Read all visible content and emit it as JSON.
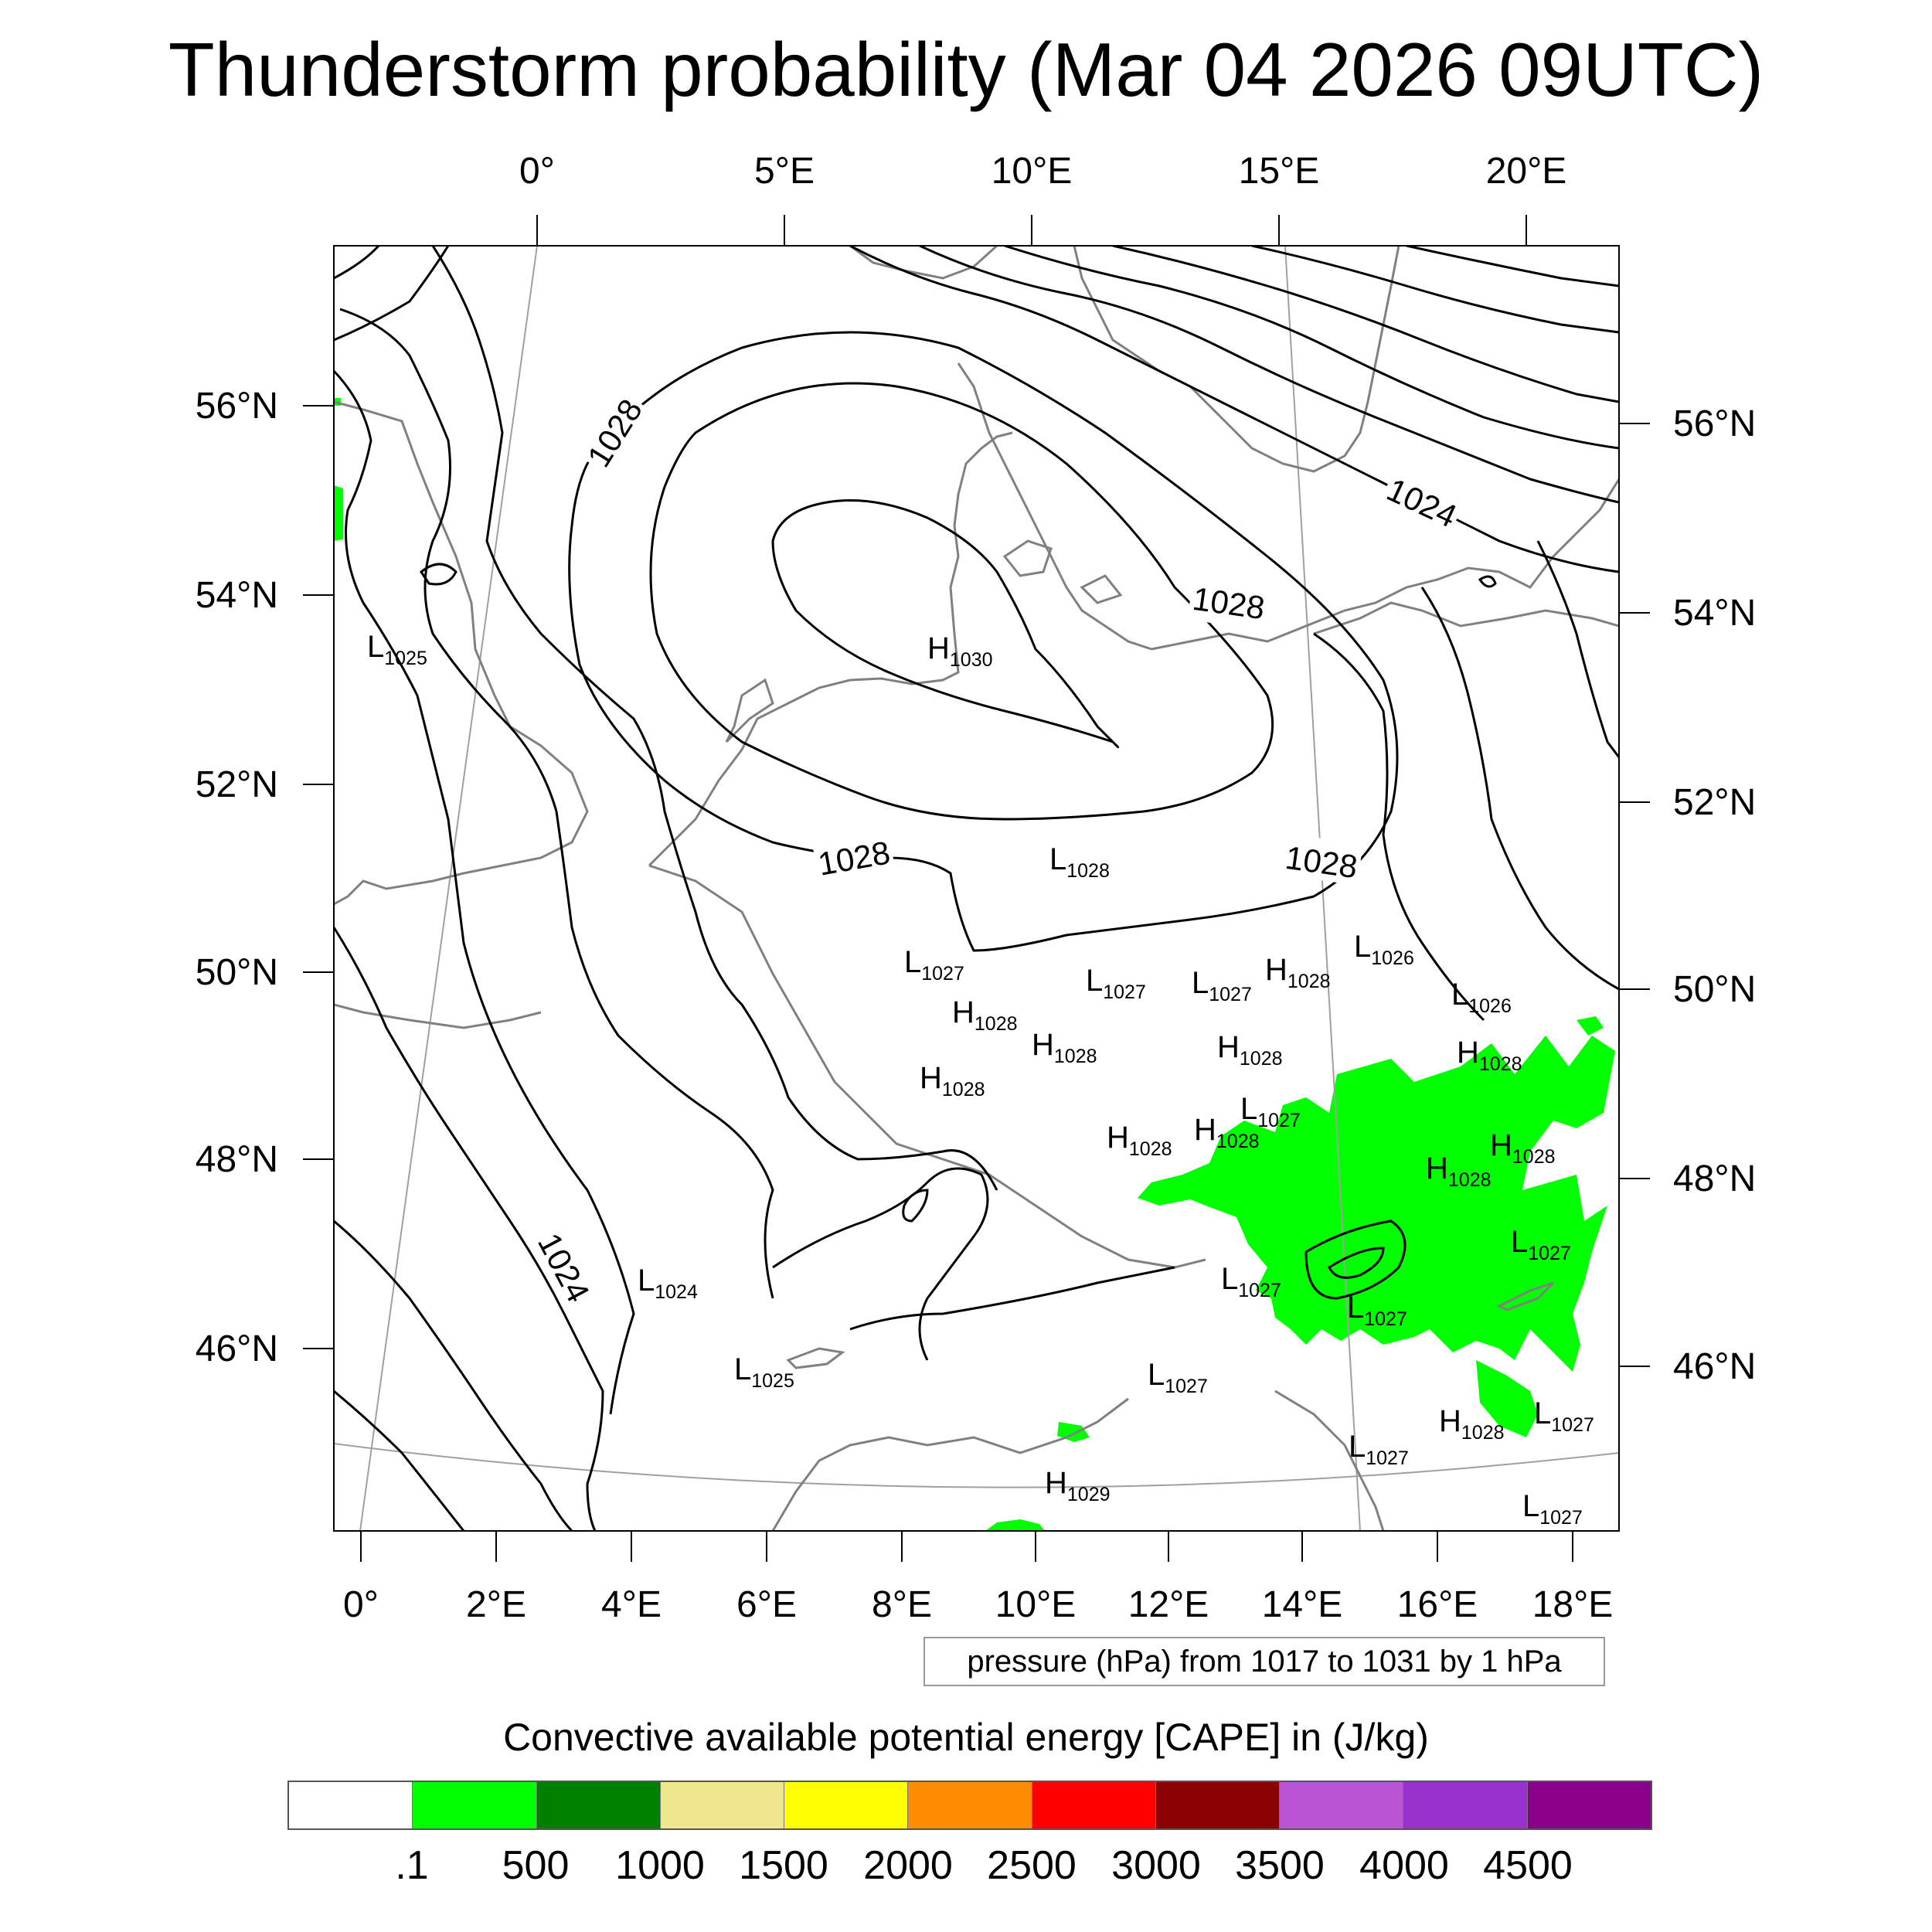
{
  "title": "Thunderstorm probability (Mar 04 2026 09UTC)",
  "map": {
    "top_lon_labels": [
      "0°",
      "5°E",
      "10°E",
      "15°E",
      "20°E"
    ],
    "bottom_lon_labels": [
      "0°",
      "2°E",
      "4°E",
      "6°E",
      "8°E",
      "10°E",
      "12°E",
      "14°E",
      "16°E",
      "18°E"
    ],
    "left_lat_labels": [
      "56°N",
      "54°N",
      "52°N",
      "50°N",
      "48°N",
      "46°N"
    ],
    "right_lat_labels": [
      "56°N",
      "54°N",
      "52°N",
      "50°N",
      "48°N",
      "46°N"
    ],
    "contour_labels": [
      "1028",
      "1024",
      "1028",
      "1028",
      "1028",
      "1024"
    ],
    "pressure_centers": [
      {
        "letter": "L",
        "value": "1025"
      },
      {
        "letter": "H",
        "value": "1030"
      },
      {
        "letter": "L",
        "value": "1028"
      },
      {
        "letter": "L",
        "value": "1026"
      },
      {
        "letter": "L",
        "value": "1027"
      },
      {
        "letter": "L",
        "value": "1027"
      },
      {
        "letter": "L",
        "value": "1027"
      },
      {
        "letter": "H",
        "value": "1028"
      },
      {
        "letter": "L",
        "value": "1026"
      },
      {
        "letter": "H",
        "value": "1028"
      },
      {
        "letter": "H",
        "value": "1028"
      },
      {
        "letter": "H",
        "value": "1028"
      },
      {
        "letter": "H",
        "value": "1028"
      },
      {
        "letter": "H",
        "value": "1028"
      },
      {
        "letter": "L",
        "value": "1027"
      },
      {
        "letter": "H",
        "value": "1028"
      },
      {
        "letter": "H",
        "value": "1028"
      },
      {
        "letter": "H",
        "value": "1028"
      },
      {
        "letter": "H",
        "value": "1028"
      },
      {
        "letter": "L",
        "value": "1027"
      },
      {
        "letter": "L",
        "value": "1024"
      },
      {
        "letter": "L",
        "value": "1027"
      },
      {
        "letter": "L",
        "value": "1027"
      },
      {
        "letter": "L",
        "value": "1025"
      },
      {
        "letter": "L",
        "value": "1027"
      },
      {
        "letter": "H",
        "value": "1028"
      },
      {
        "letter": "L",
        "value": "1027"
      },
      {
        "letter": "L",
        "value": "1027"
      },
      {
        "letter": "H",
        "value": "1029"
      },
      {
        "letter": "L",
        "value": "1027"
      }
    ]
  },
  "pressure_info": "pressure (hPa) from 1017 to 1031 by 1 hPa",
  "colorbar": {
    "title": "Convective available potential energy [CAPE] in (J/kg)",
    "colors": [
      "#ffffff",
      "#00ff00",
      "#008000",
      "#f0e68c",
      "#ffff00",
      "#ff8c00",
      "#ff0000",
      "#8b0000",
      "#ba55d3",
      "#9932cc",
      "#8b008b"
    ],
    "labels": [
      ".1",
      "500",
      "1000",
      "1500",
      "2000",
      "2500",
      "3000",
      "3500",
      "4000",
      "4500"
    ]
  },
  "colors": {
    "cape_green": "#00ff00",
    "coastline": "#808080",
    "isobar": "#000000",
    "graticule": "#a0a0a0"
  }
}
